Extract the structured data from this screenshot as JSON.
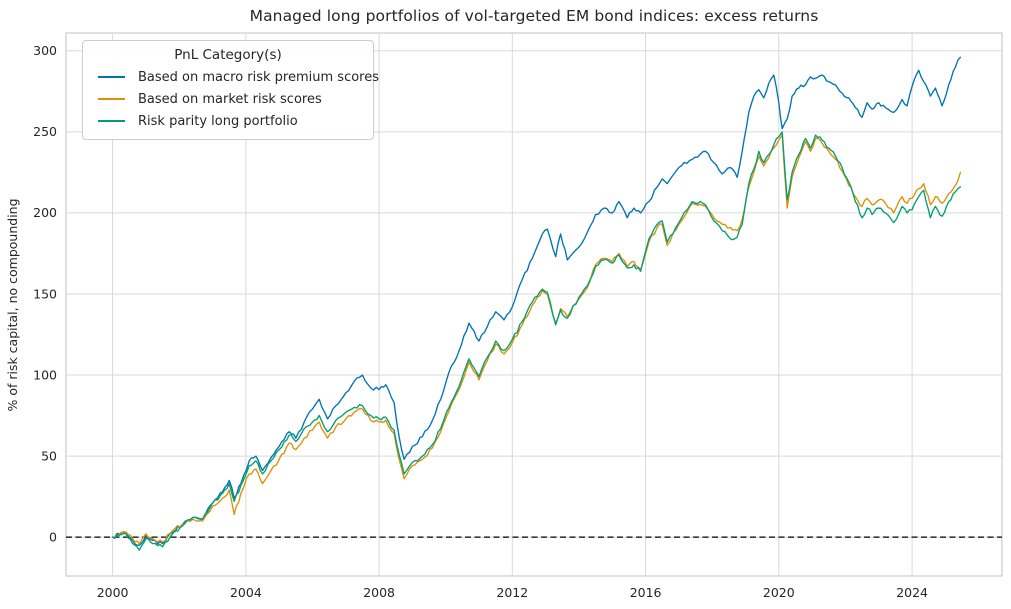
{
  "chart_data": {
    "type": "line",
    "title": "Managed long portfolios of vol-targeted EM bond indices: excess returns",
    "xlabel": "",
    "ylabel": "% of risk capital, no compounding",
    "legend": {
      "title": "PnL Category(s)",
      "position": "upper-left"
    },
    "xlim": [
      1998.6,
      2026.7
    ],
    "ylim": [
      -24,
      311
    ],
    "xticks": [
      2000,
      2004,
      2008,
      2012,
      2016,
      2020,
      2024
    ],
    "yticks": [
      0,
      50,
      100,
      150,
      200,
      250,
      300
    ],
    "grid": true,
    "grid_color": "#d9d9d9",
    "spine_color": "#cccccc",
    "zero_line": {
      "y": 0,
      "style": "dashed",
      "color": "#000000"
    },
    "x_years": [
      2000.0,
      2000.2,
      2000.4,
      2000.6,
      2000.8,
      2001.0,
      2001.2,
      2001.5,
      2001.8,
      2002.1,
      2002.4,
      2002.7,
      2003.0,
      2003.3,
      2003.5,
      2003.65,
      2003.85,
      2004.1,
      2004.3,
      2004.5,
      2004.75,
      2005.0,
      2005.3,
      2005.5,
      2005.75,
      2006.0,
      2006.2,
      2006.45,
      2006.7,
      2007.0,
      2007.25,
      2007.5,
      2007.75,
      2008.0,
      2008.2,
      2008.45,
      2008.6,
      2008.75,
      2009.0,
      2009.3,
      2009.6,
      2009.85,
      2010.1,
      2010.4,
      2010.7,
      2011.0,
      2011.25,
      2011.5,
      2011.75,
      2012.0,
      2012.3,
      2012.6,
      2012.9,
      2013.05,
      2013.3,
      2013.45,
      2013.65,
      2014.0,
      2014.25,
      2014.5,
      2014.75,
      2015.0,
      2015.2,
      2015.45,
      2015.65,
      2015.85,
      2016.1,
      2016.35,
      2016.5,
      2016.65,
      2017.0,
      2017.4,
      2017.8,
      2018.05,
      2018.3,
      2018.55,
      2018.75,
      2018.9,
      2019.1,
      2019.25,
      2019.4,
      2019.55,
      2019.7,
      2019.85,
      2020.0,
      2020.1,
      2020.25,
      2020.4,
      2020.6,
      2020.8,
      2020.95,
      2021.1,
      2021.3,
      2021.5,
      2021.7,
      2021.9,
      2022.1,
      2022.3,
      2022.5,
      2022.65,
      2022.8,
      2023.0,
      2023.2,
      2023.45,
      2023.7,
      2023.85,
      2024.0,
      2024.2,
      2024.35,
      2024.55,
      2024.7,
      2024.9,
      2025.1,
      2025.3,
      2025.45
    ],
    "series": [
      {
        "name": "Based on macro risk premium scores",
        "color": "#0173b2",
        "values": [
          0,
          2,
          3,
          -2,
          -5,
          1,
          -2,
          -4,
          3,
          8,
          12,
          11,
          21,
          28,
          35,
          24,
          33,
          47,
          50,
          41,
          49,
          56,
          65,
          61,
          71,
          79,
          85,
          73,
          81,
          89,
          96,
          100,
          92,
          91,
          94,
          83,
          62,
          48,
          56,
          62,
          72,
          85,
          102,
          115,
          132,
          121,
          130,
          139,
          134,
          142,
          159,
          172,
          187,
          190,
          173,
          187,
          171,
          179,
          188,
          199,
          203,
          200,
          207,
          197,
          203,
          200,
          207,
          216,
          221,
          218,
          228,
          233,
          238,
          231,
          224,
          228,
          222,
          238,
          262,
          272,
          276,
          271,
          280,
          285,
          268,
          252,
          258,
          272,
          277,
          279,
          284,
          283,
          285,
          281,
          279,
          274,
          271,
          265,
          259,
          268,
          264,
          268,
          265,
          262,
          270,
          266,
          278,
          288,
          281,
          272,
          277,
          266,
          279,
          290,
          296
        ]
      },
      {
        "name": "Based on market risk scores",
        "color": "#de8f05",
        "values": [
          0,
          2,
          3,
          -1,
          -4,
          2,
          -1,
          -3,
          4,
          8,
          11,
          10,
          19,
          24,
          29,
          14,
          27,
          39,
          42,
          33,
          41,
          48,
          58,
          54,
          61,
          66,
          71,
          61,
          68,
          73,
          77,
          79,
          72,
          71,
          72,
          64,
          48,
          36,
          44,
          48,
          55,
          65,
          78,
          91,
          108,
          97,
          109,
          119,
          113,
          120,
          131,
          143,
          152,
          150,
          132,
          141,
          136,
          147,
          154,
          168,
          172,
          170,
          175,
          167,
          170,
          165,
          182,
          191,
          193,
          180,
          193,
          206,
          204,
          197,
          193,
          191,
          189,
          196,
          216,
          225,
          235,
          229,
          234,
          240,
          245,
          248,
          203,
          222,
          234,
          244,
          238,
          246,
          243,
          238,
          233,
          226,
          217,
          210,
          204,
          209,
          205,
          208,
          206,
          200,
          210,
          206,
          209,
          215,
          218,
          205,
          210,
          206,
          212,
          217,
          225
        ]
      },
      {
        "name": "Risk parity long portfolio",
        "color": "#029e73",
        "values": [
          0,
          1,
          2,
          -4,
          -8,
          -1,
          -4,
          -6,
          2,
          7,
          12,
          11,
          21,
          27,
          33,
          22,
          32,
          44,
          47,
          39,
          47,
          54,
          63,
          59,
          67,
          71,
          75,
          65,
          72,
          77,
          80,
          81,
          75,
          73,
          74,
          66,
          51,
          39,
          46,
          50,
          57,
          67,
          80,
          93,
          110,
          99,
          111,
          121,
          115,
          122,
          133,
          145,
          153,
          151,
          131,
          140,
          135,
          148,
          155,
          167,
          171,
          169,
          174,
          166,
          168,
          164,
          184,
          193,
          195,
          182,
          194,
          207,
          205,
          195,
          189,
          184,
          185,
          193,
          218,
          227,
          238,
          231,
          236,
          242,
          247,
          250,
          208,
          225,
          236,
          246,
          240,
          248,
          245,
          240,
          235,
          228,
          219,
          207,
          197,
          203,
          199,
          203,
          200,
          194,
          204,
          200,
          202,
          210,
          214,
          197,
          204,
          198,
          207,
          213,
          216
        ]
      }
    ]
  }
}
